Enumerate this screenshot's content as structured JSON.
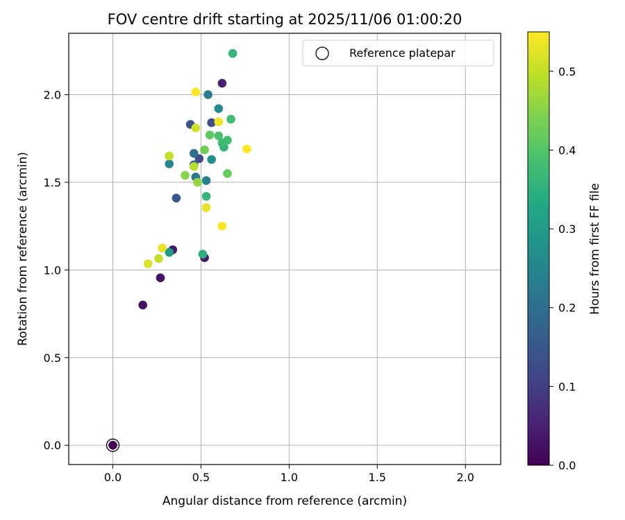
{
  "chart_data": {
    "type": "scatter",
    "title": "FOV centre drift starting at 2025/11/06 01:00:20",
    "xlabel": "Angular distance from reference (arcmin)",
    "ylabel": "Rotation from reference (arcmin)",
    "xlim": [
      -0.25,
      2.2
    ],
    "ylim": [
      -0.11,
      2.35
    ],
    "xticks": [
      0.0,
      0.5,
      1.0,
      1.5,
      2.0
    ],
    "xtick_labels": [
      "0.0",
      "0.5",
      "1.0",
      "1.5",
      "2.0"
    ],
    "yticks": [
      0.0,
      0.5,
      1.0,
      1.5,
      2.0
    ],
    "ytick_labels": [
      "0.0",
      "0.5",
      "1.0",
      "1.5",
      "2.0"
    ],
    "grid": true,
    "legend": {
      "label": "Reference platepar",
      "position": "top-right"
    },
    "reference_point": {
      "x": 0.0,
      "y": 0.0
    },
    "colorbar": {
      "label": "Hours from first FF file",
      "range": [
        0.0,
        0.55
      ],
      "ticks": [
        0.0,
        0.1,
        0.2,
        0.3,
        0.4,
        0.5
      ],
      "tick_labels": [
        "0.0",
        "0.1",
        "0.2",
        "0.3",
        "0.4",
        "0.5"
      ],
      "colormap": "viridis"
    },
    "points": [
      {
        "x": 0.0,
        "y": 0.0,
        "c": 0.0
      },
      {
        "x": 0.17,
        "y": 0.8,
        "c": 0.02
      },
      {
        "x": 0.27,
        "y": 0.955,
        "c": 0.03
      },
      {
        "x": 0.34,
        "y": 1.115,
        "c": 0.04
      },
      {
        "x": 0.52,
        "y": 1.07,
        "c": 0.04
      },
      {
        "x": 0.62,
        "y": 2.065,
        "c": 0.05
      },
      {
        "x": 0.49,
        "y": 1.635,
        "c": 0.12
      },
      {
        "x": 0.36,
        "y": 1.41,
        "c": 0.15
      },
      {
        "x": 0.44,
        "y": 1.83,
        "c": 0.14
      },
      {
        "x": 0.56,
        "y": 1.84,
        "c": 0.13
      },
      {
        "x": 0.46,
        "y": 1.6,
        "c": 0.17
      },
      {
        "x": 0.46,
        "y": 1.665,
        "c": 0.2
      },
      {
        "x": 0.47,
        "y": 1.53,
        "c": 0.22
      },
      {
        "x": 0.53,
        "y": 1.51,
        "c": 0.24
      },
      {
        "x": 0.32,
        "y": 1.605,
        "c": 0.25
      },
      {
        "x": 0.54,
        "y": 2.0,
        "c": 0.23
      },
      {
        "x": 0.6,
        "y": 1.92,
        "c": 0.26
      },
      {
        "x": 0.56,
        "y": 1.63,
        "c": 0.27
      },
      {
        "x": 0.32,
        "y": 1.1,
        "c": 0.3
      },
      {
        "x": 0.51,
        "y": 1.09,
        "c": 0.35
      },
      {
        "x": 0.53,
        "y": 1.42,
        "c": 0.36
      },
      {
        "x": 0.63,
        "y": 1.7,
        "c": 0.36
      },
      {
        "x": 0.62,
        "y": 1.725,
        "c": 0.37
      },
      {
        "x": 0.65,
        "y": 1.74,
        "c": 0.38
      },
      {
        "x": 0.6,
        "y": 1.765,
        "c": 0.39
      },
      {
        "x": 0.68,
        "y": 2.235,
        "c": 0.36
      },
      {
        "x": 0.67,
        "y": 1.86,
        "c": 0.38
      },
      {
        "x": 0.55,
        "y": 1.77,
        "c": 0.41
      },
      {
        "x": 0.52,
        "y": 1.685,
        "c": 0.43
      },
      {
        "x": 0.65,
        "y": 1.55,
        "c": 0.42
      },
      {
        "x": 0.41,
        "y": 1.54,
        "c": 0.45
      },
      {
        "x": 0.48,
        "y": 1.5,
        "c": 0.46
      },
      {
        "x": 0.46,
        "y": 1.59,
        "c": 0.49
      },
      {
        "x": 0.32,
        "y": 1.65,
        "c": 0.5
      },
      {
        "x": 0.47,
        "y": 1.81,
        "c": 0.51
      },
      {
        "x": 0.26,
        "y": 1.065,
        "c": 0.5
      },
      {
        "x": 0.2,
        "y": 1.035,
        "c": 0.52
      },
      {
        "x": 0.28,
        "y": 1.125,
        "c": 0.53
      },
      {
        "x": 0.53,
        "y": 1.355,
        "c": 0.53
      },
      {
        "x": 0.6,
        "y": 1.845,
        "c": 0.54
      },
      {
        "x": 0.47,
        "y": 2.015,
        "c": 0.55
      },
      {
        "x": 0.62,
        "y": 1.25,
        "c": 0.55
      },
      {
        "x": 0.76,
        "y": 1.69,
        "c": 0.55
      }
    ]
  }
}
